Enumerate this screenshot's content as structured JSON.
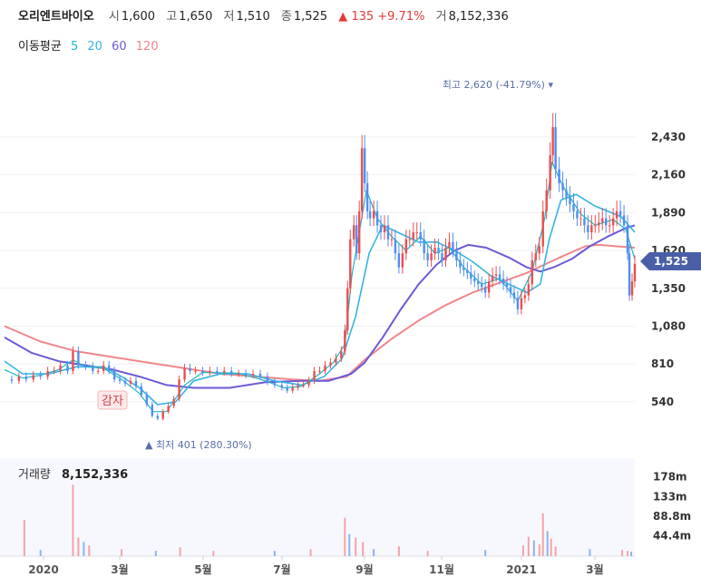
{
  "header": {
    "stock_name": "오리엔트바이오",
    "open_label": "시",
    "open": "1,600",
    "high_label": "고",
    "high": "1,650",
    "low_label": "저",
    "low": "1,510",
    "close_label": "종",
    "close": "1,525",
    "change": "▲ 135 +9.71%",
    "volume_label": "거",
    "volume": "8,152,336"
  },
  "moving_avg": {
    "label": "이동평균",
    "periods": [
      {
        "text": "5",
        "color": "#1fb6c4"
      },
      {
        "text": "20",
        "color": "#35b4e6"
      },
      {
        "text": "60",
        "color": "#6b5ad6"
      },
      {
        "text": "120",
        "color": "#f0868a"
      }
    ]
  },
  "chart_data": {
    "type": "candlestick",
    "y_ticks": [
      "2,430",
      "2,160",
      "1,890",
      "1,620",
      "1,350",
      "1,080",
      "810",
      "540"
    ],
    "y_tick_values": [
      2430,
      2160,
      1890,
      1620,
      1350,
      1080,
      810,
      540
    ],
    "ylim": [
      300,
      2760
    ],
    "x_ticks": [
      "2020",
      "3월",
      "5월",
      "7월",
      "9월",
      "11월",
      "2021",
      "3월"
    ],
    "current_price": {
      "label": "1,525",
      "value": 1525
    },
    "high_annotation": {
      "text": "최고 2,620 (-41.79%) ▾",
      "value": 2620
    },
    "low_annotation": {
      "text": "▲ 최저 401 (280.30%)",
      "value": 401
    },
    "event_label": "감자",
    "price_path": [
      [
        0,
        700
      ],
      [
        8,
        690
      ],
      [
        16,
        720
      ],
      [
        24,
        700
      ],
      [
        32,
        730
      ],
      [
        40,
        720
      ],
      [
        48,
        760
      ],
      [
        55,
        760
      ],
      [
        62,
        800
      ],
      [
        70,
        760
      ],
      [
        76,
        900
      ],
      [
        82,
        800
      ],
      [
        90,
        790
      ],
      [
        98,
        760
      ],
      [
        104,
        760
      ],
      [
        110,
        800
      ],
      [
        116,
        760
      ],
      [
        122,
        700
      ],
      [
        128,
        690
      ],
      [
        134,
        670
      ],
      [
        140,
        690
      ],
      [
        146,
        650
      ],
      [
        152,
        590
      ],
      [
        158,
        520
      ],
      [
        164,
        440
      ],
      [
        170,
        420
      ],
      [
        176,
        470
      ],
      [
        182,
        510
      ],
      [
        188,
        560
      ],
      [
        194,
        700
      ],
      [
        200,
        780
      ],
      [
        206,
        760
      ],
      [
        212,
        760
      ],
      [
        220,
        750
      ],
      [
        228,
        760
      ],
      [
        236,
        750
      ],
      [
        244,
        760
      ],
      [
        252,
        740
      ],
      [
        260,
        740
      ],
      [
        268,
        730
      ],
      [
        276,
        740
      ],
      [
        284,
        720
      ],
      [
        292,
        680
      ],
      [
        300,
        660
      ],
      [
        308,
        640
      ],
      [
        314,
        620
      ],
      [
        320,
        640
      ],
      [
        326,
        660
      ],
      [
        332,
        660
      ],
      [
        338,
        690
      ],
      [
        344,
        760
      ],
      [
        350,
        760
      ],
      [
        356,
        800
      ],
      [
        362,
        820
      ],
      [
        368,
        850
      ],
      [
        374,
        900
      ],
      [
        378,
        1050
      ],
      [
        381,
        1350
      ],
      [
        384,
        1700
      ],
      [
        388,
        1800
      ],
      [
        391,
        1600
      ],
      [
        394,
        1900
      ],
      [
        397,
        2350
      ],
      [
        400,
        2100
      ],
      [
        403,
        1900
      ],
      [
        406,
        1850
      ],
      [
        410,
        1900
      ],
      [
        414,
        1800
      ],
      [
        418,
        1750
      ],
      [
        422,
        1800
      ],
      [
        426,
        1700
      ],
      [
        430,
        1700
      ],
      [
        434,
        1600
      ],
      [
        438,
        1500
      ],
      [
        442,
        1600
      ],
      [
        446,
        1700
      ],
      [
        450,
        1700
      ],
      [
        454,
        1750
      ],
      [
        458,
        1750
      ],
      [
        462,
        1700
      ],
      [
        466,
        1600
      ],
      [
        470,
        1550
      ],
      [
        474,
        1600
      ],
      [
        478,
        1640
      ],
      [
        482,
        1600
      ],
      [
        486,
        1550
      ],
      [
        490,
        1640
      ],
      [
        494,
        1680
      ],
      [
        498,
        1620
      ],
      [
        502,
        1550
      ],
      [
        506,
        1500
      ],
      [
        510,
        1480
      ],
      [
        514,
        1460
      ],
      [
        518,
        1420
      ],
      [
        522,
        1400
      ],
      [
        526,
        1380
      ],
      [
        530,
        1360
      ],
      [
        534,
        1320
      ],
      [
        538,
        1400
      ],
      [
        542,
        1440
      ],
      [
        546,
        1450
      ],
      [
        550,
        1420
      ],
      [
        554,
        1380
      ],
      [
        558,
        1360
      ],
      [
        562,
        1320
      ],
      [
        566,
        1280
      ],
      [
        570,
        1200
      ],
      [
        574,
        1280
      ],
      [
        578,
        1300
      ],
      [
        582,
        1380
      ],
      [
        586,
        1550
      ],
      [
        590,
        1600
      ],
      [
        594,
        1650
      ],
      [
        598,
        1900
      ],
      [
        602,
        2050
      ],
      [
        606,
        2300
      ],
      [
        609,
        2500
      ],
      [
        612,
        2200
      ],
      [
        616,
        2100
      ],
      [
        620,
        2050
      ],
      [
        624,
        2000
      ],
      [
        628,
        1950
      ],
      [
        632,
        1900
      ],
      [
        636,
        1850
      ],
      [
        640,
        1850
      ],
      [
        644,
        1800
      ],
      [
        648,
        1750
      ],
      [
        652,
        1800
      ],
      [
        656,
        1800
      ],
      [
        660,
        1820
      ],
      [
        664,
        1850
      ],
      [
        668,
        1800
      ],
      [
        672,
        1800
      ],
      [
        676,
        1850
      ],
      [
        680,
        1900
      ],
      [
        684,
        1870
      ],
      [
        688,
        1800
      ],
      [
        692,
        1600
      ],
      [
        694,
        1300
      ],
      [
        697,
        1400
      ],
      [
        700,
        1525
      ]
    ],
    "ma5": [
      [
        0,
        770
      ],
      [
        20,
        710
      ],
      [
        40,
        730
      ],
      [
        60,
        770
      ],
      [
        76,
        840
      ],
      [
        90,
        790
      ],
      [
        110,
        780
      ],
      [
        130,
        700
      ],
      [
        150,
        600
      ],
      [
        165,
        470
      ],
      [
        180,
        470
      ],
      [
        200,
        660
      ],
      [
        220,
        750
      ],
      [
        260,
        745
      ],
      [
        290,
        690
      ],
      [
        310,
        640
      ],
      [
        330,
        650
      ],
      [
        350,
        740
      ],
      [
        365,
        820
      ],
      [
        378,
        950
      ],
      [
        386,
        1450
      ],
      [
        394,
        1750
      ],
      [
        402,
        2050
      ],
      [
        414,
        1850
      ],
      [
        430,
        1720
      ],
      [
        446,
        1620
      ],
      [
        462,
        1720
      ],
      [
        478,
        1600
      ],
      [
        494,
        1640
      ],
      [
        510,
        1500
      ],
      [
        530,
        1380
      ],
      [
        550,
        1420
      ],
      [
        570,
        1260
      ],
      [
        586,
        1470
      ],
      [
        600,
        1850
      ],
      [
        608,
        2250
      ],
      [
        620,
        2080
      ],
      [
        640,
        1880
      ],
      [
        656,
        1800
      ],
      [
        676,
        1840
      ],
      [
        690,
        1770
      ],
      [
        700,
        1560
      ]
    ],
    "ma20": [
      [
        0,
        830
      ],
      [
        20,
        740
      ],
      [
        50,
        740
      ],
      [
        80,
        790
      ],
      [
        110,
        790
      ],
      [
        130,
        720
      ],
      [
        150,
        640
      ],
      [
        170,
        520
      ],
      [
        190,
        540
      ],
      [
        210,
        690
      ],
      [
        240,
        740
      ],
      [
        270,
        740
      ],
      [
        300,
        690
      ],
      [
        330,
        660
      ],
      [
        355,
        720
      ],
      [
        375,
        850
      ],
      [
        390,
        1150
      ],
      [
        405,
        1600
      ],
      [
        420,
        1800
      ],
      [
        440,
        1740
      ],
      [
        460,
        1680
      ],
      [
        480,
        1680
      ],
      [
        500,
        1620
      ],
      [
        520,
        1540
      ],
      [
        540,
        1440
      ],
      [
        560,
        1380
      ],
      [
        580,
        1320
      ],
      [
        595,
        1380
      ],
      [
        605,
        1700
      ],
      [
        618,
        1980
      ],
      [
        635,
        2020
      ],
      [
        655,
        1940
      ],
      [
        670,
        1900
      ],
      [
        685,
        1860
      ],
      [
        700,
        1750
      ]
    ],
    "ma60": [
      [
        0,
        1000
      ],
      [
        30,
        890
      ],
      [
        60,
        830
      ],
      [
        90,
        800
      ],
      [
        120,
        770
      ],
      [
        150,
        720
      ],
      [
        180,
        660
      ],
      [
        210,
        640
      ],
      [
        250,
        640
      ],
      [
        290,
        680
      ],
      [
        330,
        690
      ],
      [
        360,
        690
      ],
      [
        385,
        740
      ],
      [
        400,
        820
      ],
      [
        420,
        1000
      ],
      [
        440,
        1200
      ],
      [
        460,
        1380
      ],
      [
        480,
        1520
      ],
      [
        500,
        1620
      ],
      [
        515,
        1660
      ],
      [
        535,
        1640
      ],
      [
        560,
        1570
      ],
      [
        580,
        1500
      ],
      [
        595,
        1470
      ],
      [
        610,
        1500
      ],
      [
        630,
        1560
      ],
      [
        650,
        1650
      ],
      [
        670,
        1720
      ],
      [
        690,
        1780
      ],
      [
        700,
        1800
      ]
    ],
    "ma120": [
      [
        0,
        1080
      ],
      [
        40,
        970
      ],
      [
        80,
        900
      ],
      [
        120,
        860
      ],
      [
        160,
        820
      ],
      [
        200,
        780
      ],
      [
        240,
        740
      ],
      [
        280,
        720
      ],
      [
        320,
        700
      ],
      [
        350,
        690
      ],
      [
        380,
        720
      ],
      [
        400,
        840
      ],
      [
        430,
        990
      ],
      [
        460,
        1120
      ],
      [
        490,
        1230
      ],
      [
        520,
        1320
      ],
      [
        550,
        1390
      ],
      [
        580,
        1460
      ],
      [
        600,
        1520
      ],
      [
        620,
        1580
      ],
      [
        645,
        1650
      ],
      [
        660,
        1660
      ],
      [
        680,
        1650
      ],
      [
        700,
        1640
      ]
    ]
  },
  "volume_panel": {
    "label": "거래량",
    "value": "8,152,336",
    "y_ticks": [
      "178m",
      "133m",
      "88.8m",
      "44.4m"
    ],
    "y_tick_values": [
      178,
      133,
      88.8,
      44.4
    ],
    "ylim": [
      0,
      210
    ],
    "bars": [
      [
        22,
        80
      ],
      [
        40,
        12
      ],
      [
        76,
        160
      ],
      [
        82,
        40
      ],
      [
        88,
        30
      ],
      [
        94,
        22
      ],
      [
        130,
        14
      ],
      [
        168,
        10
      ],
      [
        195,
        18
      ],
      [
        232,
        10
      ],
      [
        300,
        10
      ],
      [
        340,
        14
      ],
      [
        378,
        85
      ],
      [
        383,
        48
      ],
      [
        390,
        40
      ],
      [
        398,
        30
      ],
      [
        410,
        14
      ],
      [
        438,
        20
      ],
      [
        470,
        10
      ],
      [
        534,
        12
      ],
      [
        576,
        22
      ],
      [
        582,
        42
      ],
      [
        588,
        34
      ],
      [
        594,
        25
      ],
      [
        598,
        95
      ],
      [
        603,
        55
      ],
      [
        607,
        38
      ],
      [
        612,
        20
      ],
      [
        650,
        14
      ],
      [
        686,
        12
      ],
      [
        692,
        10
      ],
      [
        696,
        8
      ]
    ]
  }
}
